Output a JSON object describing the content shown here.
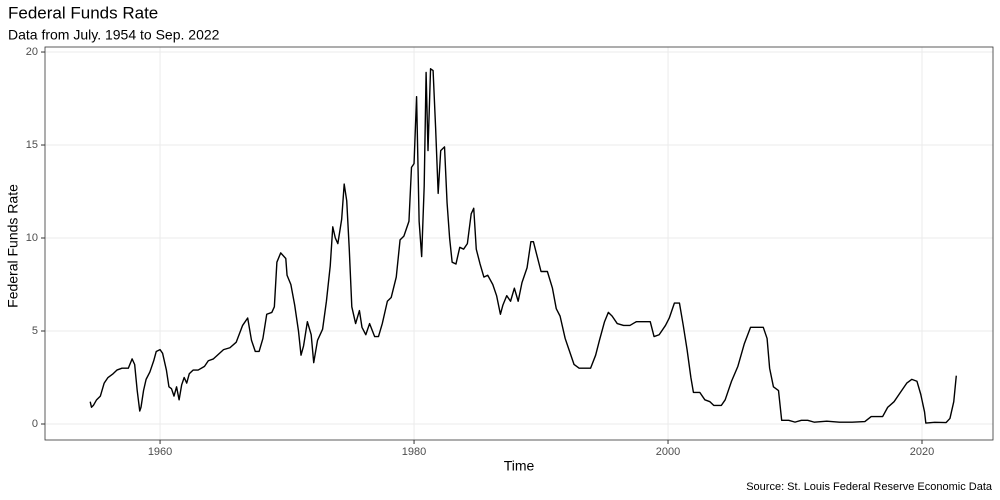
{
  "chart_data": {
    "type": "line",
    "title": "Federal Funds Rate",
    "subtitle": "Data from July. 1954 to Sep. 2022",
    "x_label": "Time",
    "y_label": "Federal Funds Rate",
    "caption": "Source: St. Louis Federal Reserve Economic Data",
    "color": "#000000",
    "grid": true,
    "xlim": [
      1950.94,
      2025.59
    ],
    "ylim": [
      -0.86,
      20.27
    ],
    "xticks": [
      1960,
      1980,
      2000,
      2020
    ],
    "yticks": [
      0,
      5,
      10,
      15,
      20
    ],
    "x": [
      1954.5,
      1954.6,
      1954.75,
      1955.0,
      1955.3,
      1955.6,
      1955.9,
      1956.3,
      1956.6,
      1957.0,
      1957.5,
      1957.8,
      1958.0,
      1958.2,
      1958.4,
      1958.5,
      1958.7,
      1958.9,
      1959.2,
      1959.5,
      1959.7,
      1960.0,
      1960.2,
      1960.5,
      1960.7,
      1960.9,
      1961.1,
      1961.3,
      1961.5,
      1961.7,
      1961.9,
      1962.1,
      1962.3,
      1962.6,
      1963.0,
      1963.5,
      1963.8,
      1964.2,
      1965.0,
      1965.5,
      1966.0,
      1966.5,
      1966.9,
      1967.2,
      1967.5,
      1967.8,
      1968.1,
      1968.4,
      1968.8,
      1969.0,
      1969.2,
      1969.5,
      1969.9,
      1970.0,
      1970.3,
      1970.6,
      1970.9,
      1971.1,
      1971.3,
      1971.6,
      1971.9,
      1972.1,
      1972.4,
      1972.8,
      1973.1,
      1973.4,
      1973.6,
      1973.8,
      1974.0,
      1974.3,
      1974.5,
      1974.7,
      1974.9,
      1975.1,
      1975.4,
      1975.7,
      1975.9,
      1976.2,
      1976.5,
      1976.9,
      1977.2,
      1977.5,
      1977.9,
      1978.2,
      1978.6,
      1978.9,
      1979.2,
      1979.6,
      1979.8,
      1980.0,
      1980.2,
      1980.4,
      1980.6,
      1980.8,
      1980.95,
      1981.1,
      1981.3,
      1981.5,
      1981.7,
      1981.9,
      1982.1,
      1982.4,
      1982.6,
      1982.8,
      1983.0,
      1983.3,
      1983.6,
      1983.9,
      1984.2,
      1984.5,
      1984.7,
      1984.9,
      1985.2,
      1985.5,
      1985.8,
      1986.2,
      1986.5,
      1986.8,
      1987.0,
      1987.3,
      1987.6,
      1987.9,
      1988.2,
      1988.5,
      1988.9,
      1989.2,
      1989.4,
      1989.7,
      1990.0,
      1990.5,
      1990.9,
      1991.2,
      1991.5,
      1991.9,
      1992.2,
      1992.6,
      1993.0,
      1993.5,
      1993.9,
      1994.3,
      1994.6,
      1995.0,
      1995.3,
      1995.6,
      1996.0,
      1996.5,
      1997.0,
      1997.5,
      1998.0,
      1998.6,
      1998.9,
      1999.3,
      1999.8,
      2000.1,
      2000.5,
      2000.9,
      2001.2,
      2001.5,
      2001.8,
      2002.0,
      2002.5,
      2002.9,
      2003.3,
      2003.6,
      2004.2,
      2004.5,
      2005.0,
      2005.5,
      2006.0,
      2006.5,
      2007.0,
      2007.5,
      2007.8,
      2008.0,
      2008.3,
      2008.7,
      2008.95,
      2009.5,
      2010.0,
      2010.5,
      2011.0,
      2011.5,
      2012.5,
      2013.5,
      2014.5,
      2015.5,
      2016.0,
      2016.9,
      2017.3,
      2017.8,
      2018.3,
      2018.8,
      2019.2,
      2019.6,
      2019.9,
      2020.2,
      2020.3,
      2021.0,
      2021.9,
      2022.2,
      2022.5,
      2022.7
    ],
    "values": [
      1.2,
      0.9,
      1.0,
      1.3,
      1.5,
      2.2,
      2.5,
      2.7,
      2.9,
      3.0,
      3.0,
      3.5,
      3.2,
      1.8,
      0.7,
      0.9,
      1.8,
      2.4,
      2.8,
      3.4,
      3.9,
      4.0,
      3.8,
      2.9,
      2.0,
      1.9,
      1.5,
      2.0,
      1.3,
      2.1,
      2.5,
      2.2,
      2.7,
      2.9,
      2.9,
      3.1,
      3.4,
      3.5,
      4.0,
      4.1,
      4.4,
      5.3,
      5.7,
      4.5,
      3.9,
      3.9,
      4.6,
      5.9,
      6.0,
      6.3,
      8.7,
      9.2,
      8.9,
      8.0,
      7.5,
      6.4,
      5.0,
      3.7,
      4.2,
      5.5,
      4.8,
      3.3,
      4.5,
      5.1,
      6.6,
      8.5,
      10.6,
      10.0,
      9.7,
      11.0,
      12.9,
      12.0,
      9.4,
      6.3,
      5.4,
      6.1,
      5.2,
      4.8,
      5.4,
      4.7,
      4.7,
      5.4,
      6.6,
      6.8,
      7.9,
      9.9,
      10.1,
      10.9,
      13.8,
      14.0,
      17.6,
      10.9,
      9.0,
      12.8,
      18.9,
      14.7,
      19.1,
      19.0,
      15.9,
      12.4,
      14.7,
      14.9,
      11.9,
      10.0,
      8.7,
      8.6,
      9.5,
      9.4,
      9.7,
      11.3,
      11.6,
      9.4,
      8.6,
      7.9,
      8.0,
      7.5,
      6.9,
      5.9,
      6.4,
      6.9,
      6.6,
      7.3,
      6.6,
      7.6,
      8.4,
      9.8,
      9.8,
      9.0,
      8.2,
      8.2,
      7.3,
      6.2,
      5.8,
      4.6,
      4.0,
      3.2,
      3.0,
      3.0,
      3.0,
      3.7,
      4.5,
      5.5,
      6.0,
      5.8,
      5.4,
      5.3,
      5.3,
      5.5,
      5.5,
      5.5,
      4.7,
      4.8,
      5.3,
      5.7,
      6.5,
      6.5,
      5.3,
      4.0,
      2.5,
      1.7,
      1.7,
      1.3,
      1.2,
      1.0,
      1.0,
      1.3,
      2.3,
      3.1,
      4.3,
      5.2,
      5.2,
      5.2,
      4.6,
      3.0,
      2.0,
      1.8,
      0.2,
      0.2,
      0.1,
      0.2,
      0.2,
      0.1,
      0.15,
      0.1,
      0.1,
      0.13,
      0.4,
      0.4,
      0.9,
      1.2,
      1.7,
      2.2,
      2.4,
      2.3,
      1.6,
      0.65,
      0.05,
      0.09,
      0.08,
      0.3,
      1.2,
      2.6
    ]
  }
}
